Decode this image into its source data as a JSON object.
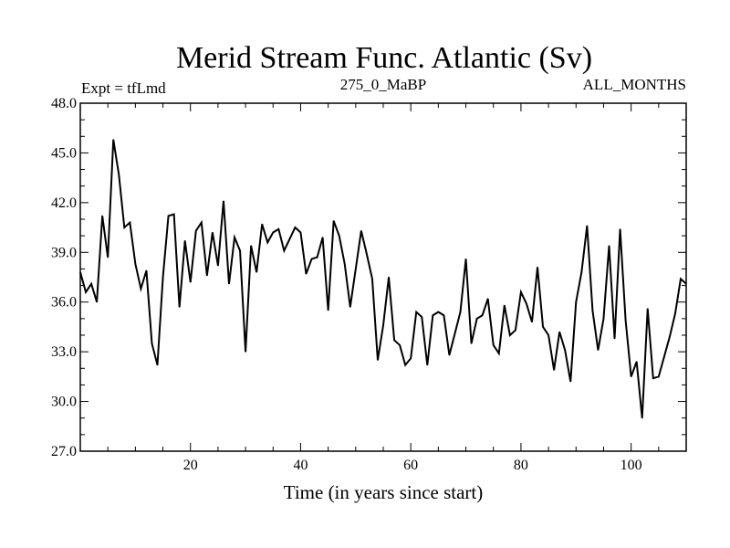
{
  "chart_data": {
    "type": "line",
    "title": "Merid Stream Func. Atlantic (Sv)",
    "subtitle_left": "Expt = tfLmd",
    "subtitle_center": "275_0_MaBP",
    "subtitle_right": "ALL_MONTHS",
    "xlabel": "Time (in years since start)",
    "ylabel": "",
    "xlim": [
      0,
      110
    ],
    "ylim": [
      27.0,
      48.0
    ],
    "x_ticks": [
      20,
      40,
      60,
      80,
      100
    ],
    "y_ticks": [
      27.0,
      30.0,
      33.0,
      36.0,
      39.0,
      42.0,
      45.0,
      48.0
    ],
    "y_tick_labels": [
      "27.0",
      "30.0",
      "33.0",
      "36.0",
      "39.0",
      "42.0",
      "45.0",
      "48.0"
    ],
    "grid": false,
    "series": [
      {
        "name": "Merid Stream Func. Atlantic",
        "x": [
          0,
          1,
          2,
          3,
          4,
          5,
          6,
          7,
          8,
          9,
          10,
          11,
          12,
          13,
          14,
          15,
          16,
          17,
          18,
          19,
          20,
          21,
          22,
          23,
          24,
          25,
          26,
          27,
          28,
          29,
          30,
          31,
          32,
          33,
          34,
          35,
          36,
          37,
          38,
          39,
          40,
          41,
          42,
          43,
          44,
          45,
          46,
          47,
          48,
          49,
          50,
          51,
          52,
          53,
          54,
          55,
          56,
          57,
          58,
          59,
          60,
          61,
          62,
          63,
          64,
          65,
          66,
          67,
          68,
          69,
          70,
          71,
          72,
          73,
          74,
          75,
          76,
          77,
          78,
          79,
          80,
          81,
          82,
          83,
          84,
          85,
          86,
          87,
          88,
          89,
          90,
          91,
          92,
          93,
          94,
          95,
          96,
          97,
          98,
          99,
          100,
          101,
          102,
          103,
          104,
          105,
          106,
          107,
          108,
          109,
          110
        ],
        "values": [
          37.8,
          36.6,
          37.1,
          36.0,
          41.2,
          38.7,
          45.8,
          43.7,
          40.5,
          40.8,
          38.3,
          36.8,
          37.9,
          33.5,
          32.2,
          37.5,
          41.2,
          41.3,
          35.7,
          39.7,
          37.2,
          40.3,
          40.8,
          37.6,
          40.2,
          38.2,
          42.1,
          37.1,
          39.9,
          39.1,
          33.0,
          39.4,
          37.8,
          40.7,
          39.6,
          40.2,
          40.4,
          39.1,
          39.8,
          40.5,
          40.2,
          37.7,
          38.6,
          38.7,
          39.9,
          35.5,
          40.9,
          40.0,
          38.3,
          35.7,
          38.0,
          40.3,
          38.9,
          37.4,
          32.5,
          34.6,
          37.5,
          33.7,
          33.4,
          32.2,
          32.6,
          35.4,
          35.1,
          32.2,
          35.2,
          35.4,
          35.2,
          32.8,
          34.1,
          35.4,
          38.6,
          33.5,
          35.0,
          35.2,
          36.2,
          33.4,
          32.9,
          35.8,
          34.0,
          34.3,
          36.6,
          35.9,
          34.8,
          38.1,
          34.5,
          34.0,
          31.9,
          34.2,
          33.1,
          31.2,
          36.0,
          37.8,
          40.6,
          35.5,
          33.1,
          35.0,
          39.4,
          33.8,
          40.4,
          34.9,
          31.5,
          32.4,
          29.0,
          35.6,
          31.4,
          31.5,
          32.7,
          33.9,
          35.3,
          37.4,
          37.1
        ]
      }
    ]
  }
}
